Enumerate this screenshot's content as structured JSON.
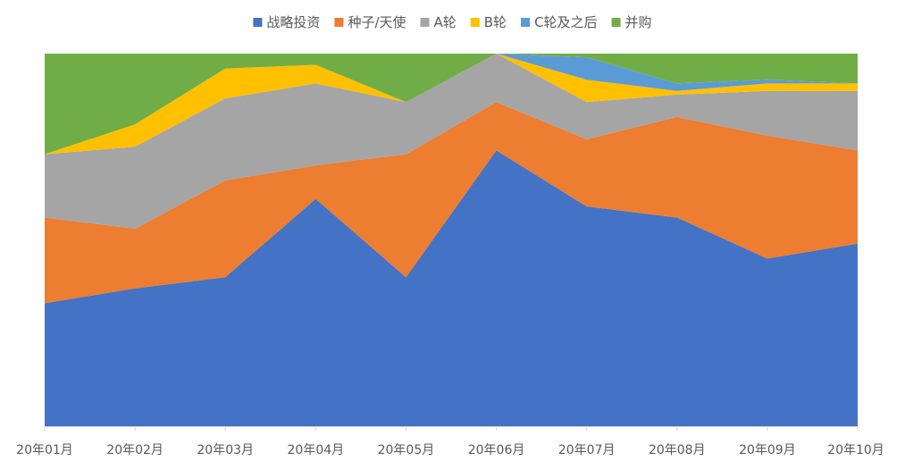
{
  "chart_data": {
    "type": "area",
    "stacked": true,
    "normalized_percent": true,
    "title": "",
    "xlabel": "",
    "ylabel": "",
    "ylim": [
      0,
      100
    ],
    "legend_position": "top",
    "grid": false,
    "categories": [
      "20年01月",
      "20年02月",
      "20年03月",
      "20年04月",
      "20年05月",
      "20年06月",
      "20年07月",
      "20年08月",
      "20年09月",
      "20年10月"
    ],
    "series": [
      {
        "name": "战略投资",
        "color": "#4472C4",
        "values": [
          33,
          37,
          40,
          61,
          40,
          74,
          59,
          56,
          45,
          49
        ]
      },
      {
        "name": "种子/天使",
        "color": "#ED7D31",
        "values": [
          23,
          16,
          26,
          9,
          33,
          13,
          18,
          27,
          33,
          25
        ]
      },
      {
        "name": "A轮",
        "color": "#A5A5A5",
        "values": [
          17,
          22,
          22,
          22,
          14,
          13,
          10,
          6,
          12,
          16
        ]
      },
      {
        "name": "B轮",
        "color": "#FFC000",
        "values": [
          0,
          6,
          8,
          5,
          0,
          0,
          6,
          1,
          2,
          2
        ]
      },
      {
        "name": "C轮及之后",
        "color": "#5B9BD5",
        "values": [
          0,
          0,
          0,
          0,
          0,
          0,
          6,
          2,
          1,
          0
        ]
      },
      {
        "name": "并购",
        "color": "#70AD47",
        "values": [
          27,
          19,
          4,
          3,
          13,
          0,
          1,
          8,
          7,
          8
        ]
      }
    ]
  }
}
